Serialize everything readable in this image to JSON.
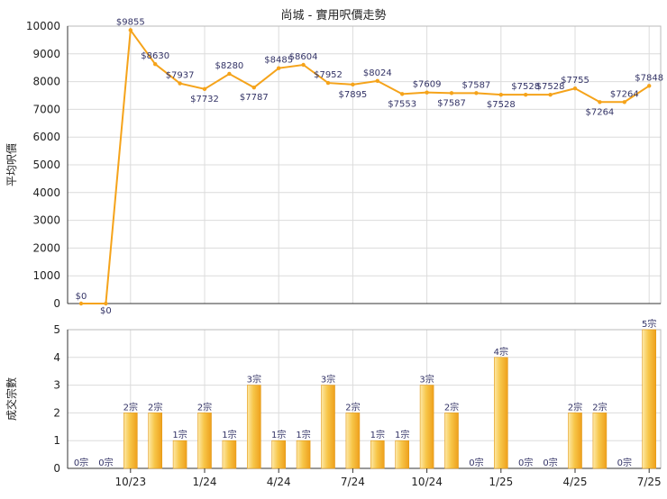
{
  "title": "尚城 - 實用呎價走勢",
  "colors": {
    "line": "#f5a31a",
    "bar_light": "#fde9a8",
    "bar_dark": "#f0a01a",
    "grid": "#dcdcdc",
    "axis": "#333333",
    "text": "#222222",
    "label": "#333366"
  },
  "chart_data": [
    {
      "type": "line",
      "ylabel": "平均呎價",
      "ylim": [
        0,
        10000
      ],
      "yticks": [
        "0",
        "1000",
        "2000",
        "3000",
        "4000",
        "5000",
        "6000",
        "7000",
        "8000",
        "9000",
        "10000"
      ],
      "grid": true,
      "values": [
        0,
        0,
        9855,
        8630,
        7937,
        7732,
        8280,
        7787,
        8485,
        8604,
        7952,
        7895,
        8024,
        7553,
        7609,
        7587,
        7587,
        7528,
        7528,
        7528,
        7755,
        7264,
        7264,
        7848
      ],
      "labels": [
        "$0",
        "$0",
        "$9855",
        "$8630",
        "$7937",
        "$7732",
        "$8280",
        "$7787",
        "$8485",
        "$8604",
        "$7952",
        "$7895",
        "$8024",
        "$7553",
        "$7609",
        "$7587",
        "$7587",
        "$7528",
        "$7528",
        "$7528",
        "$7755",
        "$7264",
        "$7264",
        "$7848"
      ]
    },
    {
      "type": "bar",
      "ylabel": "成交宗數",
      "ylim": [
        0,
        5
      ],
      "yticks": [
        "0",
        "1",
        "2",
        "3",
        "4",
        "5"
      ],
      "grid": true,
      "xtick_labels": [
        "10/23",
        "1/24",
        "4/24",
        "7/24",
        "10/24",
        "1/25",
        "4/25",
        "7/25"
      ],
      "values": [
        0,
        0,
        2,
        2,
        1,
        2,
        1,
        3,
        1,
        1,
        3,
        2,
        1,
        1,
        3,
        2,
        0,
        4,
        0,
        0,
        2,
        2,
        0,
        5
      ],
      "labels": [
        "0宗",
        "0宗",
        "2宗",
        "2宗",
        "1宗",
        "2宗",
        "1宗",
        "3宗",
        "1宗",
        "1宗",
        "3宗",
        "2宗",
        "1宗",
        "1宗",
        "3宗",
        "2宗",
        "0宗",
        "4宗",
        "0宗",
        "0宗",
        "2宗",
        "2宗",
        "0宗",
        "5宗"
      ]
    }
  ]
}
